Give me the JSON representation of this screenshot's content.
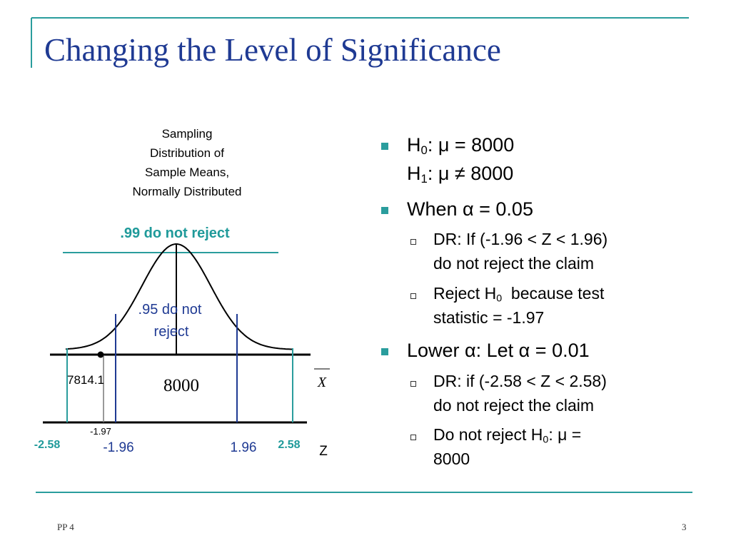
{
  "title": "Changing the Level of Significance",
  "diagram": {
    "caption": [
      "Sampling",
      "Distribution of",
      "Sample Means,",
      "Normally Distributed"
    ],
    "outer_label": ".99 do not reject",
    "inner_label": [
      ".95 do not",
      "reject"
    ],
    "mean_label": "8000",
    "sample_label": "7814.1",
    "axis_x_label": "X",
    "axis_z_label": "Z",
    "z_labels": {
      "left_outer": "-2.58",
      "left_inner": "-1.96",
      "sample": "-1.97",
      "right_inner": "1.96",
      "right_outer": "2.58"
    }
  },
  "bullets": [
    {
      "level": 1,
      "lines": [
        [
          {
            "text": "H"
          },
          {
            "text": "0",
            "sub": true
          },
          {
            "text": ": μ = 8000"
          }
        ],
        [
          {
            "text": "H"
          },
          {
            "text": "1",
            "sub": true
          },
          {
            "text": ": μ ≠ 8000"
          }
        ]
      ]
    },
    {
      "level": 1,
      "lines": [
        [
          {
            "text": "When α = 0.05"
          }
        ]
      ]
    },
    {
      "level": 2,
      "lines": [
        [
          {
            "text": "DR: If (-1.96 < Z < 1.96)"
          }
        ],
        [
          {
            "text": "do not reject the claim"
          }
        ]
      ]
    },
    {
      "level": 2,
      "lines": [
        [
          {
            "text": "Reject H"
          },
          {
            "text": "0",
            "sub": true
          },
          {
            "text": "  because test"
          }
        ],
        [
          {
            "text": "statistic = -1.97"
          }
        ]
      ]
    },
    {
      "level": 1,
      "lines": [
        [
          {
            "text": "Lower α: Let α = 0.01"
          }
        ]
      ]
    },
    {
      "level": 2,
      "lines": [
        [
          {
            "text": "DR: if (-2.58 < Z < 2.58)"
          }
        ],
        [
          {
            "text": "do not reject the claim"
          }
        ]
      ]
    },
    {
      "level": 2,
      "lines": [
        [
          {
            "text": "Do not reject H"
          },
          {
            "text": "0",
            "sub": true
          },
          {
            "text": ": μ ="
          }
        ],
        [
          {
            "text": "8000"
          }
        ]
      ]
    }
  ],
  "footer": {
    "left": "PP 4",
    "page": "3"
  }
}
